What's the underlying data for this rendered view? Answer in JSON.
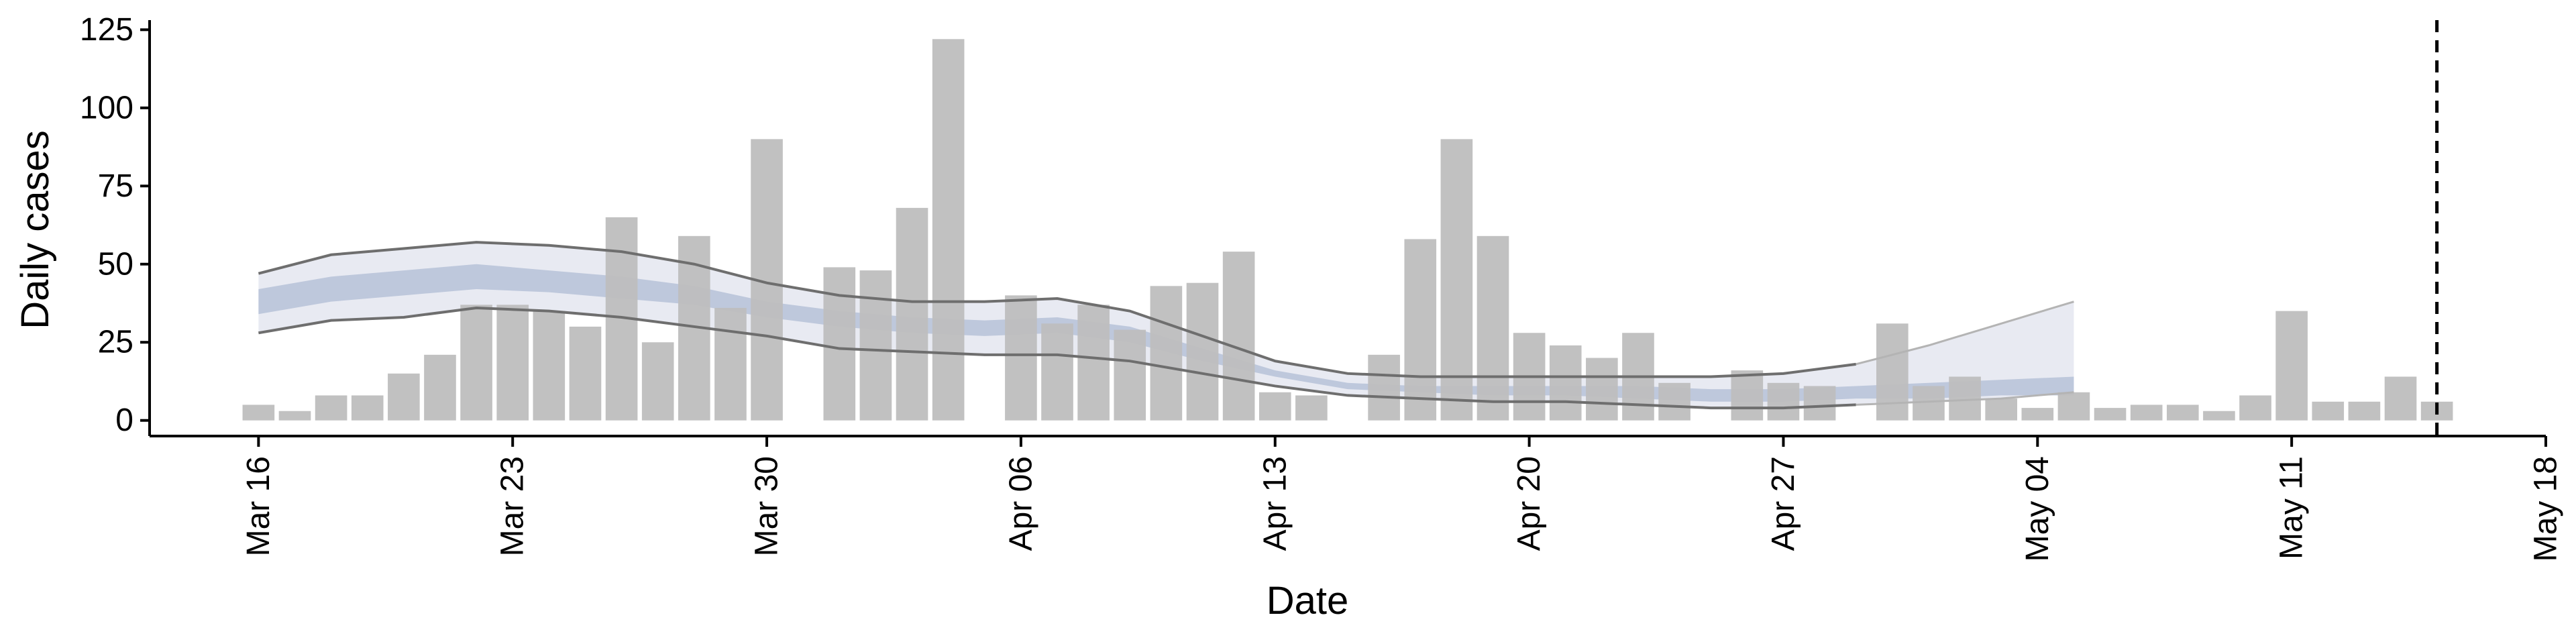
{
  "chart_data": {
    "type": "bar",
    "xlabel": "Date",
    "ylabel": "Daily cases",
    "ylim": [
      -5,
      127
    ],
    "yticks": [
      0,
      25,
      50,
      75,
      100,
      125
    ],
    "x_start": "2020-03-16",
    "xlim": [
      "2020-03-13",
      "2020-05-18"
    ],
    "xticks": [
      {
        "date": "2020-03-16",
        "label": "Mar 16"
      },
      {
        "date": "2020-03-23",
        "label": "Mar 23"
      },
      {
        "date": "2020-03-30",
        "label": "Mar 30"
      },
      {
        "date": "2020-04-06",
        "label": "Apr 06"
      },
      {
        "date": "2020-04-13",
        "label": "Apr 13"
      },
      {
        "date": "2020-04-20",
        "label": "Apr 20"
      },
      {
        "date": "2020-04-27",
        "label": "Apr 27"
      },
      {
        "date": "2020-05-04",
        "label": "May 04"
      },
      {
        "date": "2020-05-11",
        "label": "May 11"
      },
      {
        "date": "2020-05-18",
        "label": "May 18"
      }
    ],
    "bars": {
      "name": "Daily cases",
      "color": "#bebebe",
      "values": [
        5,
        3,
        8,
        8,
        15,
        21,
        37,
        37,
        35,
        30,
        65,
        25,
        59,
        36,
        90,
        null,
        49,
        48,
        68,
        122,
        null,
        40,
        31,
        37,
        29,
        43,
        44,
        54,
        9,
        8,
        null,
        21,
        58,
        90,
        59,
        28,
        24,
        20,
        28,
        12,
        null,
        16,
        12,
        11,
        null,
        31,
        11,
        14,
        7,
        4,
        9,
        4,
        5,
        5,
        3,
        8,
        35,
        6,
        6,
        14,
        6
      ]
    },
    "estimate": {
      "name": "Estimate",
      "outer_color": "#e8eaf2",
      "inner_color": "#bec8dc",
      "x_offsets": [
        0,
        2,
        4,
        6,
        8,
        10,
        12,
        14,
        16,
        18,
        20,
        22,
        24,
        26,
        28,
        30,
        32,
        34,
        36,
        38,
        40,
        42,
        44,
        46,
        48,
        50
      ],
      "outer_upper": [
        47,
        53,
        55,
        57,
        56,
        54,
        50,
        44,
        40,
        38,
        38,
        39,
        35,
        27,
        19,
        15,
        14,
        14,
        14,
        14,
        14,
        15,
        18,
        24,
        31,
        38
      ],
      "outer_lower": [
        28,
        32,
        33,
        36,
        35,
        33,
        30,
        27,
        23,
        22,
        21,
        21,
        19,
        15,
        11,
        8,
        7,
        6,
        6,
        5,
        4,
        4,
        5,
        6,
        7,
        9
      ],
      "inner_upper": [
        42,
        46,
        48,
        50,
        48,
        46,
        43,
        38,
        35,
        33,
        32,
        33,
        30,
        23,
        16,
        12,
        11,
        11,
        11,
        11,
        10,
        10,
        11,
        12,
        13,
        14
      ],
      "inner_lower": [
        34,
        38,
        40,
        42,
        41,
        39,
        37,
        33,
        30,
        28,
        27,
        28,
        25,
        19,
        14,
        10,
        9,
        8,
        8,
        7,
        6,
        6,
        7,
        7,
        8,
        8
      ],
      "line_upper": [
        47,
        53,
        55,
        57,
        56,
        54,
        50,
        44,
        40,
        38,
        38,
        39,
        35,
        27,
        19,
        15,
        14,
        14,
        14,
        14,
        14,
        15,
        18,
        null,
        null,
        null
      ],
      "line_lower": [
        28,
        32,
        33,
        36,
        35,
        33,
        30,
        27,
        23,
        22,
        21,
        21,
        19,
        15,
        11,
        8,
        7,
        6,
        6,
        5,
        4,
        4,
        5,
        null,
        null,
        null
      ],
      "line_color": "#6e6e6e"
    },
    "vline": {
      "date": "2020-05-15",
      "style": "dashed",
      "color": "#000000"
    },
    "grid": false,
    "legend": "none"
  }
}
